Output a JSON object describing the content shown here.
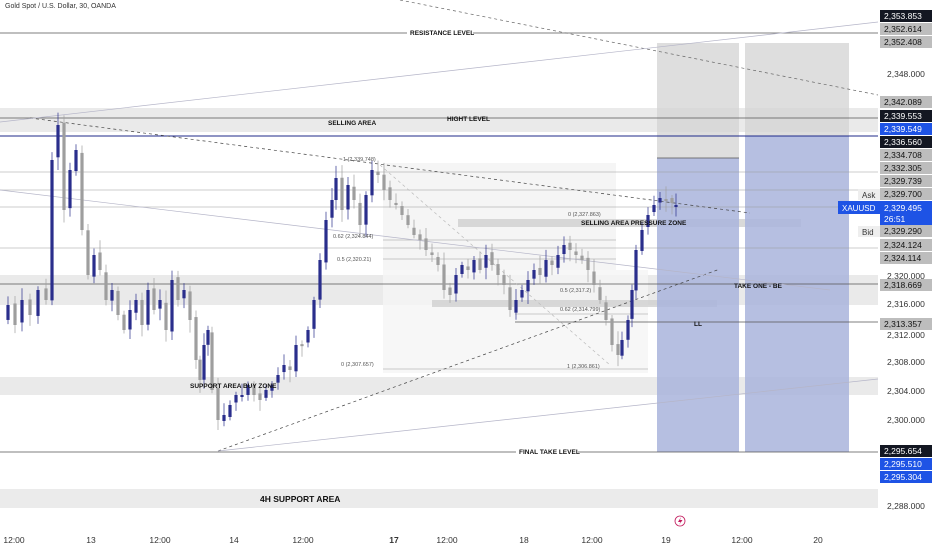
{
  "header": {
    "symbol_title": "Gold Spot / U.S. Dollar, 30, OANDA"
  },
  "annotations": {
    "resistance": "RESISTANCE LEVEL",
    "hight": "HIGHT LEVEL",
    "selling_area": "SELLING AREA",
    "selling_pressure": "SELLING AREA PRESSURE ZONE",
    "support_buy": "SUPPORT AREA BUY ZONE",
    "take_one": "TAKE ONE - BE",
    "ll": "LL",
    "final_take": "FINAL TAKE LEVEL",
    "support_4h": "4H SUPPORT AREA"
  },
  "fib_labels": {
    "top": "1 (2,339.748)",
    "f062_upper": "0.62 (2,324.844)",
    "f05": "0.5 (2,320.21)",
    "zero_right": "0 (2,327.863)",
    "f062_lower": "0.62 (2,314.799)",
    "zero_left": "0 (2,307.657)",
    "one_right": "1 (2,306.861)",
    "f05_right": "0.5 (2,317.2)"
  },
  "price_scale": {
    "ticks": [
      "2,348.000",
      "2,320.000",
      "2,316.000",
      "2,312.000",
      "2,308.000",
      "2,304.000",
      "2,300.000",
      "2,288.000"
    ],
    "labels": [
      {
        "text": "2,353.853",
        "style": "dark"
      },
      {
        "text": "2,352.614",
        "style": "gray"
      },
      {
        "text": "2,352.408",
        "style": "gray"
      },
      {
        "text": "2,342.089",
        "style": "gray"
      },
      {
        "text": "2,339.553",
        "style": "dark"
      },
      {
        "text": "2,339.549",
        "style": "blue"
      },
      {
        "text": "2,336.560",
        "style": "dark"
      },
      {
        "text": "2,334.708",
        "style": "gray"
      },
      {
        "text": "2,332.305",
        "style": "gray"
      },
      {
        "text": "2,329.739",
        "style": "gray"
      },
      {
        "text": "2,329.700",
        "style": "gray"
      },
      {
        "text": "2,329.290",
        "style": "gray"
      },
      {
        "text": "2,324.124",
        "style": "gray"
      },
      {
        "text": "2,324.114",
        "style": "gray"
      },
      {
        "text": "2,318.669",
        "style": "gray"
      },
      {
        "text": "2,313.357",
        "style": "gray"
      },
      {
        "text": "2,295.654",
        "style": "dark"
      },
      {
        "text": "2,295.510",
        "style": "blue"
      },
      {
        "text": "2,295.304",
        "style": "blue"
      }
    ],
    "ask_label": "Ask",
    "bid_label": "Bid",
    "current_symbol": "XAUUSD",
    "current_price": "2,329.495",
    "countdown": "26:51"
  },
  "time_axis": [
    "12:00",
    "13",
    "12:00",
    "14",
    "12:00",
    "17",
    "12:00",
    "18",
    "12:00",
    "19",
    "12:00",
    "20"
  ],
  "colors": {
    "bull": "#2a2e8c",
    "bear": "#9e9e9e",
    "accent": "#1e53e5",
    "zone": "#e6e6e6",
    "target": "#aab4dd"
  }
}
